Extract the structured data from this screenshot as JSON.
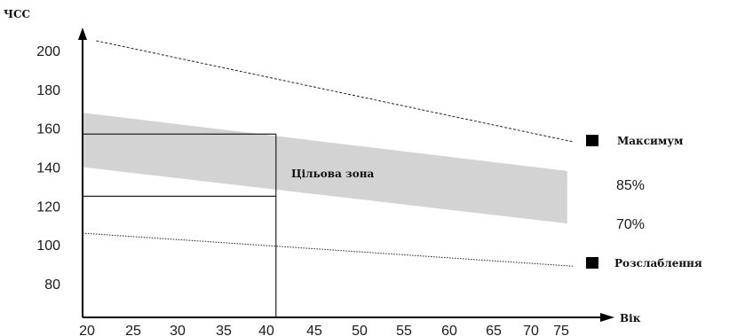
{
  "chart_data": {
    "type": "line",
    "ylabel": "ЧСС",
    "xlabel": "Вік",
    "x_ticks": [
      20,
      25,
      30,
      35,
      40,
      45,
      50,
      55,
      60,
      65,
      70,
      75
    ],
    "y_ticks": [
      80,
      100,
      120,
      140,
      160,
      180,
      200
    ],
    "xlim": [
      20,
      77
    ],
    "ylim": [
      70,
      215
    ],
    "grid": false,
    "series": [
      {
        "name": "Максимум",
        "style": "dashed",
        "x": [
          21,
          77
        ],
        "y": [
          205,
          153
        ]
      },
      {
        "name": "Розслаблення",
        "style": "dotted",
        "x": [
          20,
          77
        ],
        "y": [
          106,
          89
        ]
      }
    ],
    "band": {
      "color": "#d3d3d3",
      "upper_label": "85%",
      "lower_label": "70%",
      "x": [
        20,
        76
      ],
      "upper": [
        168,
        138
      ],
      "lower": [
        140,
        111
      ]
    },
    "target_zone": {
      "label": "Цільова зона",
      "x": [
        20,
        41
      ],
      "y": [
        125,
        157
      ]
    }
  }
}
